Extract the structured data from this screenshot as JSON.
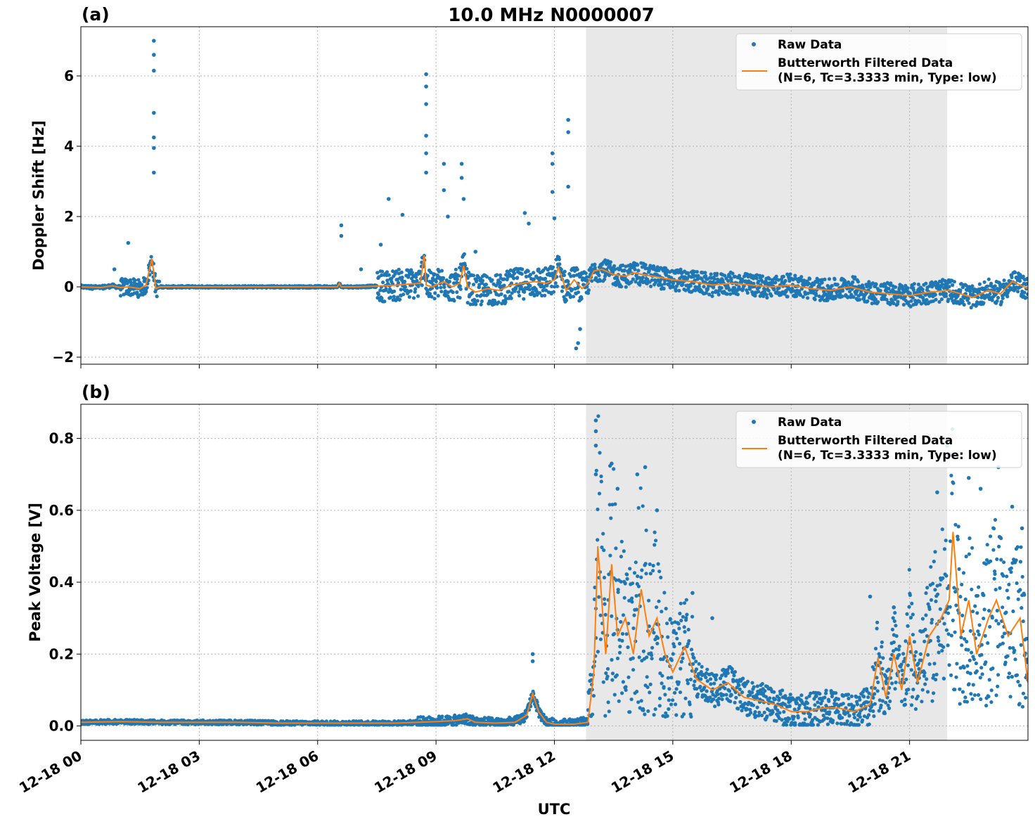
{
  "title": "10.0 MHz N0000007",
  "x_axis": {
    "label": "UTC",
    "range_hours": [
      0,
      24
    ],
    "ticks": [
      {
        "hour": 0,
        "label": "12-18 00"
      },
      {
        "hour": 3,
        "label": "12-18 03"
      },
      {
        "hour": 6,
        "label": "12-18 06"
      },
      {
        "hour": 9,
        "label": "12-18 09"
      },
      {
        "hour": 12,
        "label": "12-18 12"
      },
      {
        "hour": 15,
        "label": "12-18 15"
      },
      {
        "hour": 18,
        "label": "12-18 18"
      },
      {
        "hour": 21,
        "label": "12-18 21"
      }
    ]
  },
  "shaded_interval_hours": [
    12.8,
    21.95
  ],
  "legend": {
    "raw_label": "Raw Data",
    "filtered_label_line1": "Butterworth Filtered Data",
    "filtered_label_line2": "(N=6, Tc=3.3333 min, Type: low)",
    "placement": "upper-right"
  },
  "colors": {
    "raw": "#1f77b4",
    "filtered": "#ff7f0e",
    "shade": "#e8e8e8",
    "grid": "#b0b0b0"
  },
  "chart_data": [
    {
      "type": "scatter",
      "panel_label": "(a)",
      "ylabel": "Doppler Shift [Hz]",
      "ylim": [
        -2.2,
        7.4
      ],
      "yticks": [
        {
          "value": -2,
          "label": "−2"
        },
        {
          "value": 0,
          "label": "0"
        },
        {
          "value": 2,
          "label": "2"
        },
        {
          "value": 4,
          "label": "4"
        },
        {
          "value": 6,
          "label": "6"
        }
      ],
      "grid": true,
      "filtered_series": {
        "x": [
          0,
          0.5,
          0.8,
          1.0,
          1.2,
          1.5,
          1.65,
          1.8,
          1.9,
          2.0,
          2.5,
          3,
          4,
          5,
          6,
          6.5,
          6.55,
          6.6,
          7,
          7.5,
          8,
          8.3,
          8.6,
          8.7,
          8.75,
          8.9,
          9.2,
          9.4,
          9.6,
          9.7,
          9.8,
          10.0,
          10.3,
          10.6,
          10.9,
          11.2,
          11.5,
          11.8,
          12.0,
          12.1,
          12.3,
          12.5,
          12.7,
          12.85,
          13.0,
          13.2,
          13.5,
          13.8,
          14.0,
          14.5,
          15.0,
          15.5,
          16.0,
          16.5,
          17.0,
          17.5,
          18.0,
          18.5,
          19.0,
          19.5,
          20.0,
          20.5,
          21.0,
          21.5,
          22.0,
          22.3,
          22.6,
          23.0,
          23.3,
          23.6,
          24.0
        ],
        "y": [
          0,
          -0.02,
          0.03,
          -0.02,
          0.0,
          -0.05,
          0.05,
          0.8,
          -0.05,
          0,
          0,
          0,
          0,
          0,
          0,
          0,
          0.1,
          0,
          0,
          0.02,
          0.05,
          0.08,
          0.1,
          0.9,
          0.05,
          0.0,
          0.15,
          0.0,
          0.1,
          0.6,
          0.0,
          -0.15,
          -0.05,
          -0.1,
          0.05,
          0.1,
          0.15,
          0.1,
          0.2,
          0.55,
          -0.1,
          0.2,
          -0.05,
          0.1,
          0.45,
          0.5,
          0.35,
          0.3,
          0.4,
          0.3,
          0.2,
          0.15,
          0.05,
          0.1,
          0.05,
          0.0,
          0.05,
          -0.05,
          -0.1,
          0.0,
          -0.15,
          -0.2,
          -0.25,
          -0.15,
          -0.1,
          -0.2,
          -0.3,
          -0.1,
          -0.2,
          0.15,
          -0.05
        ]
      },
      "raw_spikes": [
        {
          "x": 1.85,
          "y": 7.0
        },
        {
          "x": 1.85,
          "y": 6.6
        },
        {
          "x": 1.85,
          "y": 6.15
        },
        {
          "x": 1.85,
          "y": 4.95
        },
        {
          "x": 1.85,
          "y": 4.25
        },
        {
          "x": 1.85,
          "y": 3.95
        },
        {
          "x": 1.85,
          "y": 3.25
        },
        {
          "x": 1.2,
          "y": 1.25
        },
        {
          "x": 0.85,
          "y": 0.5
        },
        {
          "x": 6.6,
          "y": 1.75
        },
        {
          "x": 6.6,
          "y": 1.45
        },
        {
          "x": 7.1,
          "y": 0.5
        },
        {
          "x": 7.6,
          "y": 1.2
        },
        {
          "x": 7.8,
          "y": 2.5
        },
        {
          "x": 8.15,
          "y": 2.05
        },
        {
          "x": 8.75,
          "y": 6.05
        },
        {
          "x": 8.75,
          "y": 5.7
        },
        {
          "x": 8.75,
          "y": 5.2
        },
        {
          "x": 8.75,
          "y": 4.3
        },
        {
          "x": 8.75,
          "y": 3.8
        },
        {
          "x": 8.75,
          "y": 3.25
        },
        {
          "x": 9.2,
          "y": 3.5
        },
        {
          "x": 9.2,
          "y": 2.75
        },
        {
          "x": 9.3,
          "y": 2.0
        },
        {
          "x": 9.65,
          "y": 3.5
        },
        {
          "x": 9.65,
          "y": 3.1
        },
        {
          "x": 9.7,
          "y": 2.5
        },
        {
          "x": 10.0,
          "y": 1.0
        },
        {
          "x": 11.25,
          "y": 2.1
        },
        {
          "x": 11.35,
          "y": 1.8
        },
        {
          "x": 11.95,
          "y": 3.8
        },
        {
          "x": 11.95,
          "y": 3.5
        },
        {
          "x": 11.95,
          "y": 2.7
        },
        {
          "x": 12.0,
          "y": 1.95
        },
        {
          "x": 12.35,
          "y": 4.75
        },
        {
          "x": 12.35,
          "y": 4.4
        },
        {
          "x": 12.35,
          "y": 2.85
        },
        {
          "x": 12.55,
          "y": -1.75
        },
        {
          "x": 12.6,
          "y": -1.6
        },
        {
          "x": 12.65,
          "y": -1.2
        }
      ]
    },
    {
      "type": "scatter",
      "panel_label": "(b)",
      "ylabel": "Peak Voltage [V]",
      "ylim": [
        -0.04,
        0.895
      ],
      "yticks": [
        {
          "value": 0.0,
          "label": "0.0"
        },
        {
          "value": 0.2,
          "label": "0.2"
        },
        {
          "value": 0.4,
          "label": "0.4"
        },
        {
          "value": 0.6,
          "label": "0.6"
        },
        {
          "value": 0.8,
          "label": "0.8"
        }
      ],
      "grid": true,
      "filtered_series": {
        "x": [
          0,
          1,
          2,
          3,
          4,
          5,
          6,
          7,
          8,
          9,
          9.5,
          9.8,
          10.0,
          10.5,
          11.0,
          11.3,
          11.45,
          11.6,
          11.8,
          12.0,
          12.5,
          12.85,
          13.0,
          13.1,
          13.2,
          13.3,
          13.45,
          13.6,
          13.8,
          14.0,
          14.2,
          14.4,
          14.6,
          14.8,
          15.0,
          15.3,
          15.6,
          16.0,
          16.4,
          16.8,
          17.2,
          17.6,
          18.0,
          18.4,
          18.8,
          19.2,
          19.6,
          20.0,
          20.2,
          20.4,
          20.6,
          20.8,
          21.0,
          21.2,
          21.5,
          21.8,
          22.0,
          22.1,
          22.3,
          22.5,
          22.7,
          23.0,
          23.2,
          23.5,
          23.8,
          24.0
        ],
        "y": [
          0.01,
          0.012,
          0.01,
          0.01,
          0.01,
          0.008,
          0.008,
          0.008,
          0.008,
          0.012,
          0.015,
          0.02,
          0.01,
          0.008,
          0.01,
          0.03,
          0.09,
          0.04,
          0.01,
          0.005,
          0.005,
          0.01,
          0.15,
          0.5,
          0.35,
          0.2,
          0.45,
          0.25,
          0.3,
          0.2,
          0.38,
          0.25,
          0.3,
          0.2,
          0.15,
          0.22,
          0.13,
          0.1,
          0.12,
          0.08,
          0.07,
          0.06,
          0.04,
          0.04,
          0.05,
          0.05,
          0.04,
          0.06,
          0.19,
          0.08,
          0.2,
          0.1,
          0.25,
          0.12,
          0.25,
          0.3,
          0.35,
          0.54,
          0.25,
          0.35,
          0.2,
          0.3,
          0.35,
          0.25,
          0.3,
          0.12
        ]
      },
      "raw_spikes": [
        {
          "x": 11.45,
          "y": 0.2
        },
        {
          "x": 11.45,
          "y": 0.18
        },
        {
          "x": 13.05,
          "y": 0.85
        },
        {
          "x": 13.05,
          "y": 0.82
        },
        {
          "x": 13.05,
          "y": 0.78
        },
        {
          "x": 13.05,
          "y": 0.7
        },
        {
          "x": 13.45,
          "y": 0.73
        },
        {
          "x": 13.6,
          "y": 0.66
        },
        {
          "x": 14.1,
          "y": 0.7
        },
        {
          "x": 14.3,
          "y": 0.72
        },
        {
          "x": 14.6,
          "y": 0.6
        },
        {
          "x": 15.5,
          "y": 0.37
        },
        {
          "x": 16.0,
          "y": 0.3
        },
        {
          "x": 20.0,
          "y": 0.36
        },
        {
          "x": 20.6,
          "y": 0.33
        },
        {
          "x": 21.7,
          "y": 0.65
        },
        {
          "x": 21.95,
          "y": 0.78
        },
        {
          "x": 21.95,
          "y": 0.75
        },
        {
          "x": 22.5,
          "y": 0.69
        },
        {
          "x": 22.8,
          "y": 0.66
        },
        {
          "x": 23.25,
          "y": 0.72
        },
        {
          "x": 23.6,
          "y": 0.61
        },
        {
          "x": 23.85,
          "y": 0.55
        }
      ]
    }
  ]
}
